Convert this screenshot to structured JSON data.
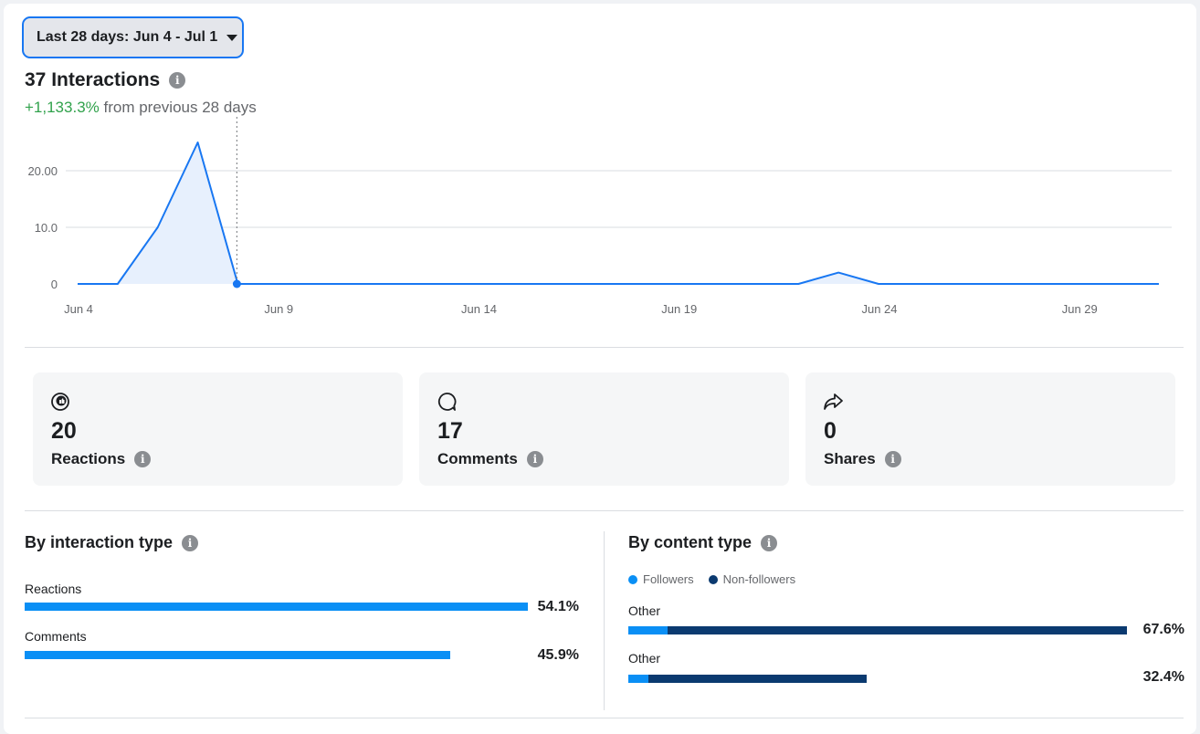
{
  "date_range": {
    "label": "Last 28 days: Jun 4 - Jul 1"
  },
  "summary": {
    "title": "37 Interactions",
    "change": "+1,133.3%",
    "change_suffix": "from previous 28 days"
  },
  "chart_data": {
    "type": "area",
    "x": [
      "Jun 4",
      "Jun 5",
      "Jun 6",
      "Jun 7",
      "Jun 8",
      "Jun 9",
      "Jun 10",
      "Jun 11",
      "Jun 12",
      "Jun 13",
      "Jun 14",
      "Jun 15",
      "Jun 16",
      "Jun 17",
      "Jun 18",
      "Jun 19",
      "Jun 20",
      "Jun 21",
      "Jun 22",
      "Jun 23",
      "Jun 24",
      "Jun 25",
      "Jun 26",
      "Jun 27",
      "Jun 28",
      "Jun 29",
      "Jun 30",
      "Jul 1"
    ],
    "series": [
      {
        "values": [
          0,
          0,
          10,
          25,
          0,
          0,
          0,
          0,
          0,
          0,
          0,
          0,
          0,
          0,
          0,
          0,
          0,
          0,
          0,
          2,
          0,
          0,
          0,
          0,
          0,
          0,
          0,
          0
        ]
      }
    ],
    "y_ticks": [
      "0",
      "10.0",
      "20.00"
    ],
    "x_ticks": [
      "Jun 4",
      "Jun 9",
      "Jun 14",
      "Jun 19",
      "Jun 24",
      "Jun 29"
    ],
    "ylim": [
      0,
      25
    ],
    "grid": true,
    "marker_index": 4,
    "colors": {
      "line": "#1877f2",
      "fill": "#e7f0fd",
      "grid": "#dadde1"
    }
  },
  "stats": [
    {
      "value": "20",
      "label": "Reactions",
      "icon": "reactions-icon"
    },
    {
      "value": "17",
      "label": "Comments",
      "icon": "comment-icon"
    },
    {
      "value": "0",
      "label": "Shares",
      "icon": "share-icon"
    }
  ],
  "by_interaction": {
    "title": "By interaction type",
    "items": [
      {
        "label": "Reactions",
        "percent": "54.1%",
        "value": 54.1
      },
      {
        "label": "Comments",
        "percent": "45.9%",
        "value": 45.9
      }
    ],
    "color": "#0a8ff5"
  },
  "by_content": {
    "title": "By content type",
    "legend": [
      {
        "label": "Followers",
        "color": "#0a8ff5"
      },
      {
        "label": "Non-followers",
        "color": "#0b3a70"
      }
    ],
    "items": [
      {
        "label": "Other",
        "percent": "67.6%",
        "value": 67.6,
        "followers_share": 7.9
      },
      {
        "label": "Other",
        "percent": "32.4%",
        "value": 32.4,
        "followers_share": 8.4
      }
    ]
  }
}
